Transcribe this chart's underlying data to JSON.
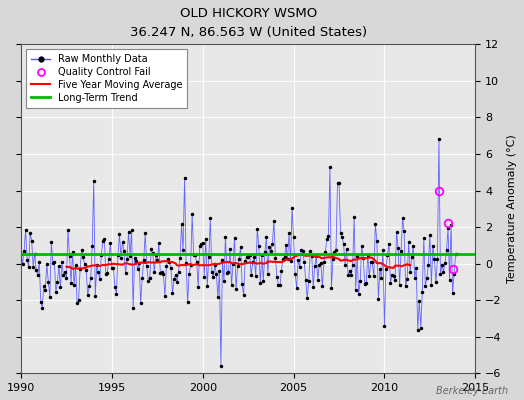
{
  "title": "OLD HICKORY WSMO",
  "subtitle": "36.247 N, 86.563 W (United States)",
  "ylabel": "Temperature Anomaly (°C)",
  "watermark": "Berkeley Earth",
  "xlim": [
    1990,
    2015
  ],
  "ylim": [
    -6,
    12
  ],
  "yticks": [
    -6,
    -4,
    -2,
    0,
    2,
    4,
    6,
    8,
    10,
    12
  ],
  "xticks": [
    1990,
    1995,
    2000,
    2005,
    2010,
    2015
  ],
  "long_term_trend_value": 0.55,
  "background_color": "#d8d8d8",
  "plot_bg_color": "#e8e8e8",
  "raw_line_color": "#5555ff",
  "raw_dot_color": "#000000",
  "moving_avg_color": "#ff0000",
  "trend_color": "#00bb00",
  "qc_fail_color": "#ff00ff",
  "seed": 42
}
